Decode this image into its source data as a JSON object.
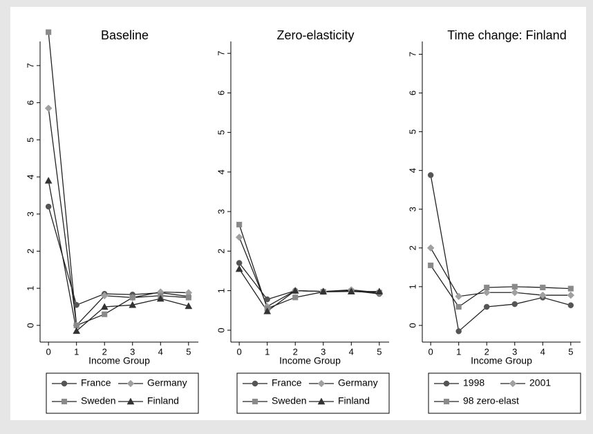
{
  "chart_data": [
    {
      "type": "line",
      "title": "Baseline",
      "xlabel": "Income Group",
      "line_color": "#222222",
      "x": [
        0,
        1,
        2,
        3,
        4,
        5
      ],
      "xlim": [
        -0.3,
        5.35
      ],
      "xticks": [
        0,
        1,
        2,
        3,
        4,
        5
      ],
      "ylim": [
        -0.45,
        7.65
      ],
      "yticks": [
        0,
        1,
        2,
        3,
        4,
        5,
        6,
        7
      ],
      "series": [
        {
          "name": "France",
          "color": "#555555",
          "marker": "circle",
          "values": [
            3.2,
            0.55,
            0.85,
            0.83,
            0.88,
            0.78
          ]
        },
        {
          "name": "Germany",
          "color": "#a0a0a0",
          "marker": "diamond",
          "values": [
            5.85,
            0.0,
            0.8,
            0.75,
            0.9,
            0.88
          ]
        },
        {
          "name": "Sweden",
          "color": "#8a8a8a",
          "marker": "square",
          "values": [
            7.9,
            0.0,
            0.3,
            0.75,
            0.8,
            0.75
          ]
        },
        {
          "name": "Finland",
          "color": "#333333",
          "marker": "triangle",
          "values": [
            3.9,
            -0.15,
            0.5,
            0.55,
            0.72,
            0.52
          ]
        }
      ]
    },
    {
      "type": "line",
      "title": "Zero-elasticity",
      "xlabel": "Income Group",
      "line_color": "#222222",
      "x": [
        0,
        1,
        2,
        3,
        4,
        5
      ],
      "xlim": [
        -0.3,
        5.35
      ],
      "xticks": [
        0,
        1,
        2,
        3,
        4,
        5
      ],
      "ylim": [
        -0.3,
        7.3
      ],
      "yticks": [
        0,
        1,
        2,
        3,
        4,
        5,
        6,
        7
      ],
      "series": [
        {
          "name": "France",
          "color": "#555555",
          "marker": "circle",
          "values": [
            1.7,
            0.78,
            1.0,
            0.98,
            1.0,
            0.92
          ]
        },
        {
          "name": "Germany",
          "color": "#a0a0a0",
          "marker": "diamond",
          "values": [
            2.35,
            0.6,
            1.0,
            0.98,
            1.02,
            0.95
          ]
        },
        {
          "name": "Sweden",
          "color": "#8a8a8a",
          "marker": "square",
          "values": [
            2.67,
            0.55,
            0.83,
            0.97,
            0.98,
            0.95
          ]
        },
        {
          "name": "Finland",
          "color": "#333333",
          "marker": "triangle",
          "values": [
            1.55,
            0.48,
            1.0,
            0.98,
            0.98,
            0.98
          ]
        }
      ]
    },
    {
      "type": "line",
      "title": "Time change: Finland",
      "xlabel": "Income Group",
      "line_color": "#222222",
      "x": [
        0,
        1,
        2,
        3,
        4,
        5
      ],
      "xlim": [
        -0.3,
        5.35
      ],
      "xticks": [
        0,
        1,
        2,
        3,
        4,
        5
      ],
      "ylim": [
        -0.43,
        7.33
      ],
      "yticks": [
        0,
        1,
        2,
        3,
        4,
        5,
        6,
        7
      ],
      "series": [
        {
          "name": "1998",
          "color": "#555555",
          "marker": "circle",
          "values": [
            3.88,
            -0.15,
            0.48,
            0.55,
            0.72,
            0.52
          ]
        },
        {
          "name": "2001",
          "color": "#a0a0a0",
          "marker": "diamond",
          "values": [
            2.0,
            0.75,
            0.85,
            0.85,
            0.78,
            0.78
          ]
        },
        {
          "name": "98 zero-elast",
          "color": "#8a8a8a",
          "marker": "square",
          "values": [
            1.55,
            0.48,
            0.98,
            1.0,
            0.98,
            0.95
          ]
        }
      ]
    }
  ]
}
